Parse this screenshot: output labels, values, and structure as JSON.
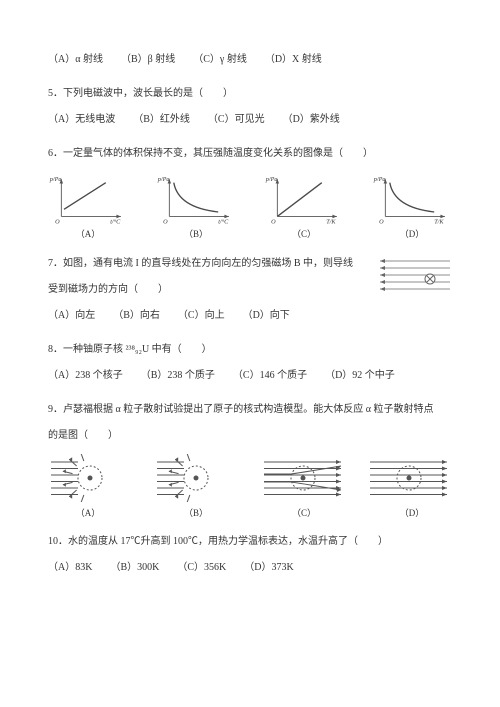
{
  "qTop": {
    "a": "（A）α 射线",
    "b": "（B）β 射线",
    "c": "（C）γ 射线",
    "d": "（D）X 射线"
  },
  "q5": {
    "text": "5．下列电磁波中，波长最长的是（　　）",
    "a": "（A）无线电波",
    "b": "（B）红外线",
    "c": "（C）可见光",
    "d": "（D）紫外线"
  },
  "q6": {
    "text": "6．一定量气体的体积保持不变，其压强随温度变化关系的图像是（　　）",
    "ylabel": "p/Pa",
    "xA": "t/°C",
    "xB": "t/°C",
    "xC": "T/K",
    "xD": "T/K",
    "la": "（A）",
    "lb": "（B）",
    "lc": "（C）",
    "ld": "（D）",
    "axis_color": "#555",
    "curve_color": "#494949"
  },
  "q7": {
    "l1": "7．如图，通有电流 I 的直导线处在方向向左的匀强磁场 B 中，则导线",
    "l2": "受到磁场力的方向（　　）",
    "a": "（A）向左",
    "b": "（B）向右",
    "c": "（C）向上",
    "d": "（D）向下",
    "field_color": "#666"
  },
  "q8": {
    "text": "8．一种铀原子核 ²³⁸₉₂U 中有（　　）",
    "a": "（A）238 个核子",
    "b": "（B）238 个质子",
    "c": "（C）146 个质子",
    "d": "（D）92 个中子"
  },
  "q9": {
    "l1": "9．卢瑟福根据 α 粒子散射试验提出了原子的核式构造模型。能大体反应 α 粒子散射特点",
    "l2": "的是图（　　）",
    "la": "（A）",
    "lb": "（B）",
    "lc": "（C）",
    "ld": "（D）",
    "line_color": "#555"
  },
  "q10": {
    "text": "10．水的温度从 17℃升高到 100℃，用热力学温标表达，水温升高了（　　）",
    "a": "（A）83K",
    "b": "（B）300K",
    "c": "（C）356K",
    "d": "（D）373K"
  }
}
